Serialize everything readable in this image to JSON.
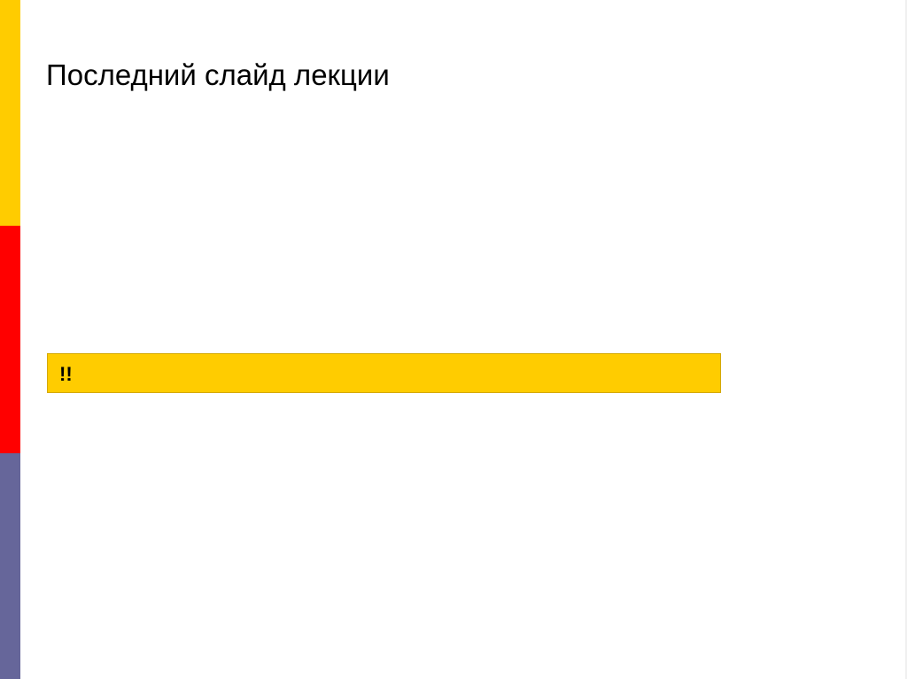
{
  "slide": {
    "title": "Последний слайд лекции",
    "note_text": "!!"
  },
  "colors": {
    "stripe_top": "#ffcc00",
    "stripe_middle": "#ff0000",
    "stripe_bottom": "#66669a",
    "note_background": "#ffcc00"
  }
}
